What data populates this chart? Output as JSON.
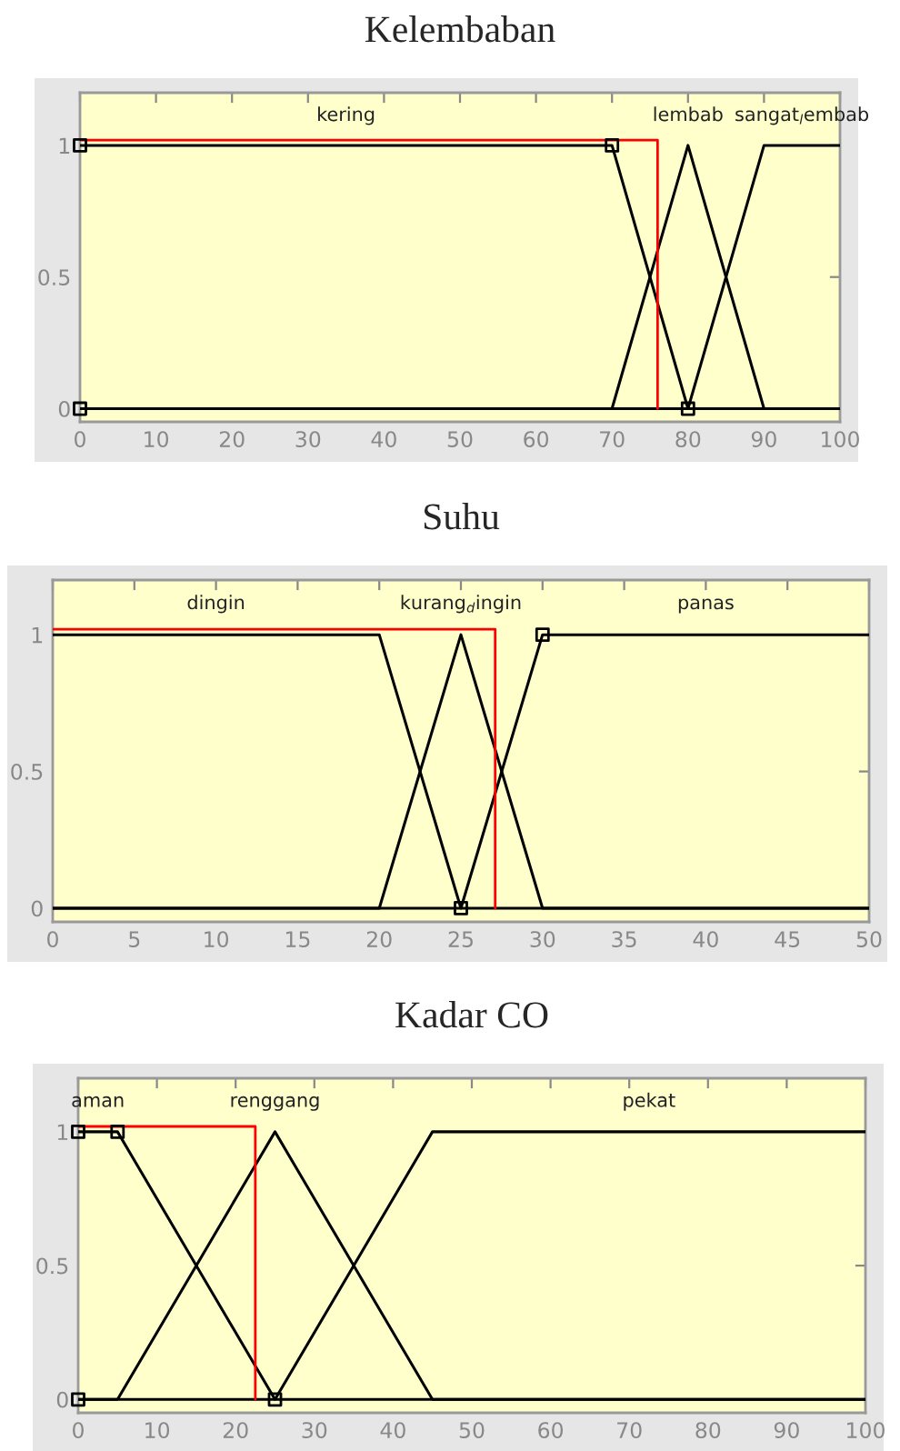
{
  "chart_data": [
    {
      "type": "line",
      "title": "Kelembaban",
      "xlim": [
        0,
        100
      ],
      "ylim": [
        -0.05,
        1.2
      ],
      "xticks": [
        0,
        10,
        20,
        30,
        40,
        50,
        60,
        70,
        80,
        90,
        100
      ],
      "yticks": [
        0,
        0.5,
        1
      ],
      "grid": false,
      "legend": false,
      "marker": "none",
      "line_style": "solid",
      "series": [
        {
          "name": "kering",
          "color": "#000000",
          "x": [
            0,
            70,
            80,
            100
          ],
          "values": [
            1,
            1,
            0,
            0
          ]
        },
        {
          "name": "lembab",
          "color": "#000000",
          "x": [
            0,
            70,
            80,
            90,
            100
          ],
          "values": [
            0,
            0,
            1,
            0,
            0
          ]
        },
        {
          "name": "sangat$_{l}$embab",
          "color": "#000000",
          "x": [
            0,
            80,
            90,
            100
          ],
          "values": [
            0,
            0,
            1,
            1
          ]
        },
        {
          "color": "#ff0000",
          "x": [
            0,
            76,
            76
          ],
          "values": [
            1.02,
            1.02,
            0
          ]
        },
        {
          "type": "scatter",
          "marker": "square",
          "color": "#000000",
          "x": [
            0,
            70,
            0,
            80
          ],
          "values": [
            1,
            1,
            0,
            0
          ]
        }
      ]
    },
    {
      "type": "line",
      "title": "Suhu",
      "xlim": [
        0,
        50
      ],
      "ylim": [
        -0.05,
        1.2
      ],
      "xticks": [
        0,
        5,
        10,
        15,
        20,
        25,
        30,
        35,
        40,
        45,
        50
      ],
      "yticks": [
        0,
        0.5,
        1
      ],
      "grid": false,
      "legend": false,
      "marker": "none",
      "line_style": "solid",
      "series": [
        {
          "name": "dingin",
          "color": "#000000",
          "x": [
            0,
            20,
            25,
            50
          ],
          "values": [
            1,
            1,
            0,
            0
          ]
        },
        {
          "name": "kurang$_{d}$ingin",
          "color": "#000000",
          "x": [
            0,
            20,
            25,
            30,
            50
          ],
          "values": [
            0,
            0,
            1,
            0,
            0
          ]
        },
        {
          "name": "panas",
          "color": "#000000",
          "x": [
            0,
            25,
            30,
            50
          ],
          "values": [
            0,
            0,
            1,
            1
          ]
        },
        {
          "color": "#ff0000",
          "x": [
            0,
            27.1,
            27.1
          ],
          "values": [
            1.02,
            1.02,
            0
          ]
        },
        {
          "type": "scatter",
          "marker": "square",
          "color": "#000000",
          "x": [
            25,
            30
          ],
          "values": [
            0,
            1
          ]
        }
      ]
    },
    {
      "type": "line",
      "title": "Kadar CO",
      "xlim": [
        0,
        100
      ],
      "ylim": [
        -0.05,
        1.2
      ],
      "xticks": [
        0,
        10,
        20,
        30,
        40,
        50,
        60,
        70,
        80,
        90,
        100
      ],
      "yticks": [
        0,
        0.5,
        1
      ],
      "grid": false,
      "legend": false,
      "marker": "none",
      "line_style": "solid",
      "series": [
        {
          "name": "aman",
          "color": "#000000",
          "x": [
            0,
            5,
            25,
            100
          ],
          "values": [
            1,
            1,
            0,
            0
          ]
        },
        {
          "name": "renggang",
          "color": "#000000",
          "x": [
            0,
            5,
            25,
            45,
            100
          ],
          "values": [
            0,
            0,
            1,
            0,
            0
          ]
        },
        {
          "name": "pekat",
          "color": "#000000",
          "x": [
            0,
            25,
            45,
            100
          ],
          "values": [
            0,
            0,
            1,
            1
          ]
        },
        {
          "color": "#ff0000",
          "x": [
            0,
            22.5,
            22.5
          ],
          "values": [
            1.02,
            1.02,
            0
          ]
        },
        {
          "type": "scatter",
          "marker": "square",
          "color": "#000000",
          "x": [
            0,
            5,
            0,
            25
          ],
          "values": [
            1,
            1,
            0,
            0
          ]
        }
      ]
    }
  ]
}
